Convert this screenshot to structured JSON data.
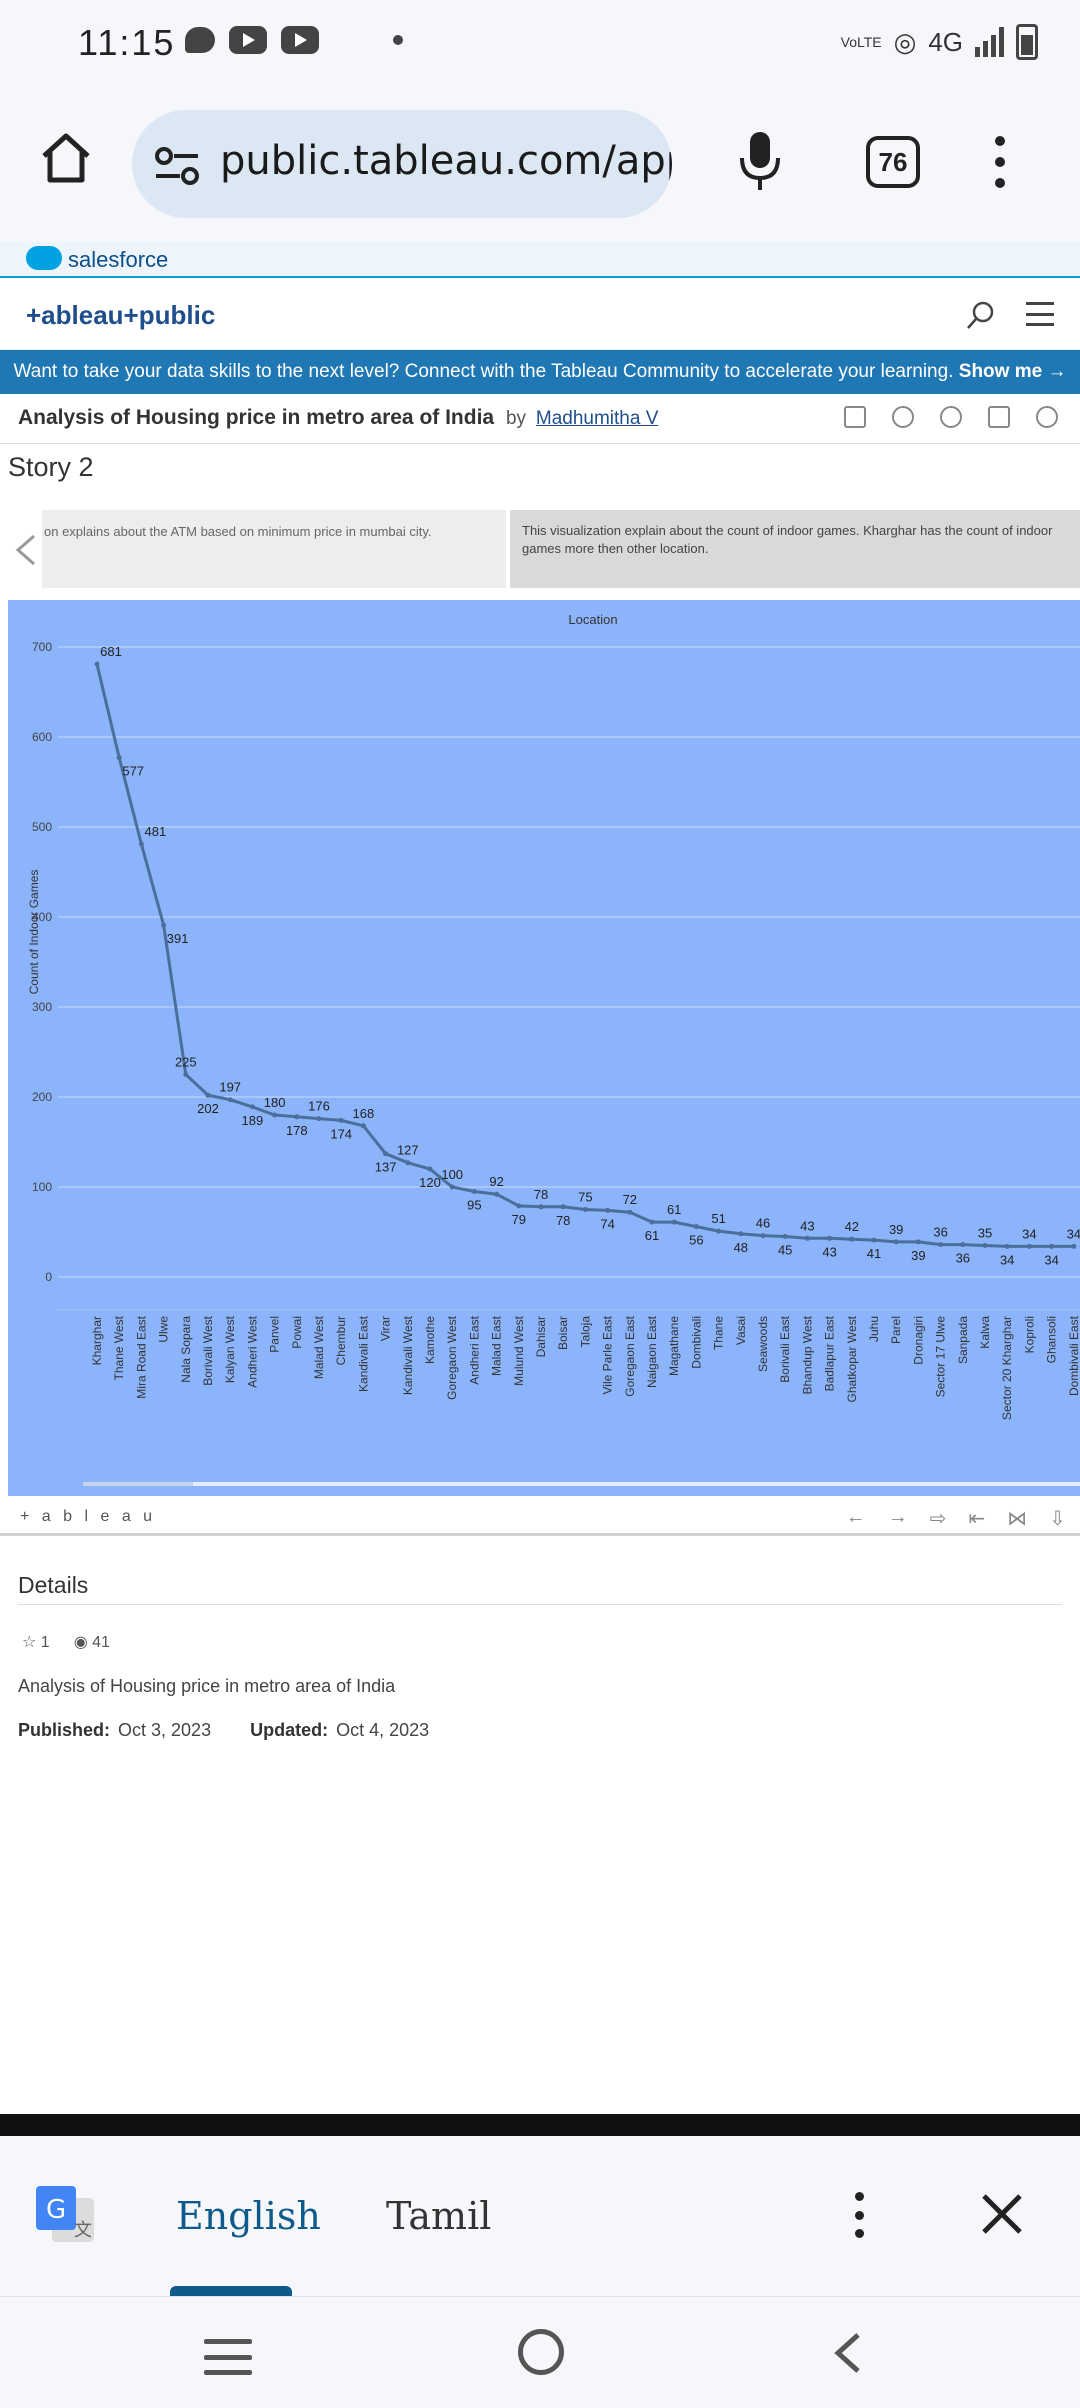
{
  "status_bar": {
    "time": "11:15",
    "network": "4G",
    "volte": "VoLTE"
  },
  "browser": {
    "url": "public.tableau.com/app/pi",
    "tab_count": "76"
  },
  "salesforce": {
    "label": "salesforce"
  },
  "tableau_header": {
    "logo_text": "+ableau+public"
  },
  "banner": {
    "text": "Want to take your data skills to the next level? Connect with the Tableau Community to accelerate your learning.",
    "cta": "Show me →"
  },
  "viz": {
    "title": "Analysis of Housing price in metro area of India",
    "by": "by",
    "author": "Madhumitha V"
  },
  "story": {
    "title": "Story 2",
    "point_prev": "on explains about the ATM based on minimum price in mumbai city.",
    "point_current": "This visualization explain about the count of indoor games. Kharghar has the count of indoor games more then other location."
  },
  "chart_data": {
    "type": "line",
    "title": "Location",
    "ylabel": "Count of Indoor Games",
    "xlabel": "",
    "ylim": [
      0,
      700
    ],
    "yticks": [
      0,
      100,
      200,
      300,
      400,
      500,
      600,
      700
    ],
    "grid": true,
    "line_color": "#4a6f9a",
    "categories": [
      "Kharghar",
      "Thane West",
      "Mira Road East",
      "Ulwe",
      "Nala Sopara",
      "Borivali West",
      "Kalyan West",
      "Andheri West",
      "Panvel",
      "Powai",
      "Malad West",
      "Chembur",
      "Kandivali East",
      "Virar",
      "Kandivali West",
      "Kamothe",
      "Goregaon West",
      "Andheri East",
      "Malad East",
      "Mulund West",
      "Dahisar",
      "Boisar",
      "Taloja",
      "Vile Parle East",
      "Goregaon East",
      "Naigaon East",
      "Magathane",
      "Dombivali",
      "Thane",
      "Vasai",
      "Seawoods",
      "Borivali East",
      "Bhandup West",
      "Badlapur East",
      "Ghatkopar West",
      "Juhu",
      "Parel",
      "Dronagiri",
      "Sector 17 Ulwe",
      "Sanpada",
      "Kalwa",
      "Sector 20 Kharghar",
      "Koproli",
      "Ghansoli",
      "Dombivali East"
    ],
    "values": [
      681,
      577,
      481,
      391,
      225,
      202,
      197,
      189,
      180,
      178,
      176,
      174,
      168,
      137,
      127,
      120,
      100,
      95,
      92,
      79,
      78,
      78,
      75,
      74,
      72,
      61,
      61,
      56,
      51,
      48,
      46,
      45,
      43,
      43,
      42,
      41,
      39,
      39,
      36,
      36,
      35,
      34,
      34,
      34,
      34
    ]
  },
  "viz_toolbar": {
    "logo": "+ a b l e a u"
  },
  "details": {
    "title": "Details",
    "favorites": "1",
    "views": "41",
    "description": "Analysis of Housing price in metro area of India",
    "published_label": "Published:",
    "published": "Oct 3, 2023",
    "updated_label": "Updated:",
    "updated": "Oct 4, 2023"
  },
  "translate": {
    "lang1": "English",
    "lang2": "Tamil"
  }
}
